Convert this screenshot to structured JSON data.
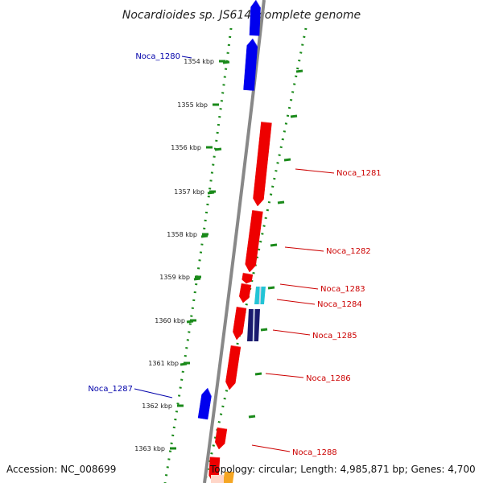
{
  "title": "Nocardioides sp. JS614, complete genome",
  "footer": {
    "accession": "Accession: NC_008699",
    "summary": "Topology: circular; Length: 4,985,871 bp; Genes: 4,700"
  },
  "axis_ticks": [
    {
      "label": "1354 kbp"
    },
    {
      "label": "1355 kbp"
    },
    {
      "label": "1356 kbp"
    },
    {
      "label": "1357 kbp"
    },
    {
      "label": "1358 kbp"
    },
    {
      "label": "1359 kbp"
    },
    {
      "label": "1360 kbp"
    },
    {
      "label": "1361 kbp"
    },
    {
      "label": "1362 kbp"
    },
    {
      "label": "1363 kbp"
    }
  ],
  "genes": [
    {
      "name": "",
      "strand": "reverse",
      "color": "#0000ee"
    },
    {
      "name": "Noca_1280",
      "strand": "reverse",
      "color": "#0000ee"
    },
    {
      "name": "Noca_1281",
      "strand": "forward",
      "color": "#ee0000"
    },
    {
      "name": "Noca_1282",
      "strand": "forward",
      "color": "#ee0000"
    },
    {
      "name": "Noca_1283",
      "strand": "forward",
      "color": "#ee0000"
    },
    {
      "name": "Noca_1284",
      "strand": "forward",
      "color": "#ee0000"
    },
    {
      "name": "Noca_1285",
      "strand": "forward",
      "color": "#ee0000"
    },
    {
      "name": "Noca_1286",
      "strand": "forward",
      "color": "#ee0000"
    },
    {
      "name": "Noca_1287",
      "strand": "reverse",
      "color": "#0000ee"
    },
    {
      "name": "Noca_1288",
      "strand": "forward",
      "color": "#ee0000"
    },
    {
      "name": "",
      "strand": "forward",
      "color": "#ee0000"
    }
  ],
  "features": [
    {
      "kind": "cyan-feature",
      "color": "#22c4d6"
    },
    {
      "kind": "navy-feature",
      "color": "#1a1a6e"
    },
    {
      "kind": "orange-feature",
      "color": "#f5a623"
    }
  ],
  "colors": {
    "forward_gene": "#ee0000",
    "reverse_gene": "#0000ee",
    "forward_label": "#cc0000",
    "reverse_label": "#0000aa",
    "backbone": "#888888",
    "gc_dots": "#1a8a1a"
  }
}
